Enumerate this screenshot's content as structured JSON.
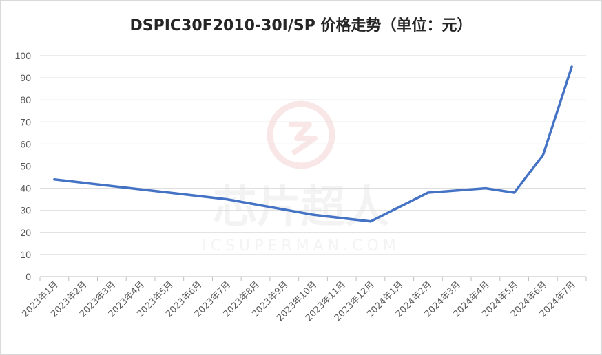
{
  "chart_data": {
    "type": "line",
    "title": "DSPIC30F2010-30I/SP 价格走势（单位：元）",
    "categories": [
      "2023年1月",
      "2023年2月",
      "2023年3月",
      "2023年4月",
      "2023年5月",
      "2023年6月",
      "2023年7月",
      "2023年8月",
      "2023年9月",
      "2023年10月",
      "2023年11月",
      "2023年12月",
      "2024年1月",
      "2024年2月",
      "2024年3月",
      "2024年4月",
      "2024年5月",
      "2024年6月",
      "2024年7月"
    ],
    "series": [
      {
        "values": [
          44,
          null,
          null,
          null,
          null,
          null,
          35,
          null,
          null,
          28,
          null,
          25,
          null,
          38,
          null,
          40,
          38,
          55,
          95
        ]
      }
    ],
    "ylim": [
      0,
      100
    ],
    "yticks": [
      0,
      10,
      20,
      30,
      40,
      50,
      60,
      70,
      80,
      90,
      100
    ],
    "grid": true,
    "legend": "none",
    "line_color": "#4472c4"
  },
  "watermark": {
    "text_cn": "芯片超人",
    "text_en": "ICSUPERMAN.COM"
  }
}
